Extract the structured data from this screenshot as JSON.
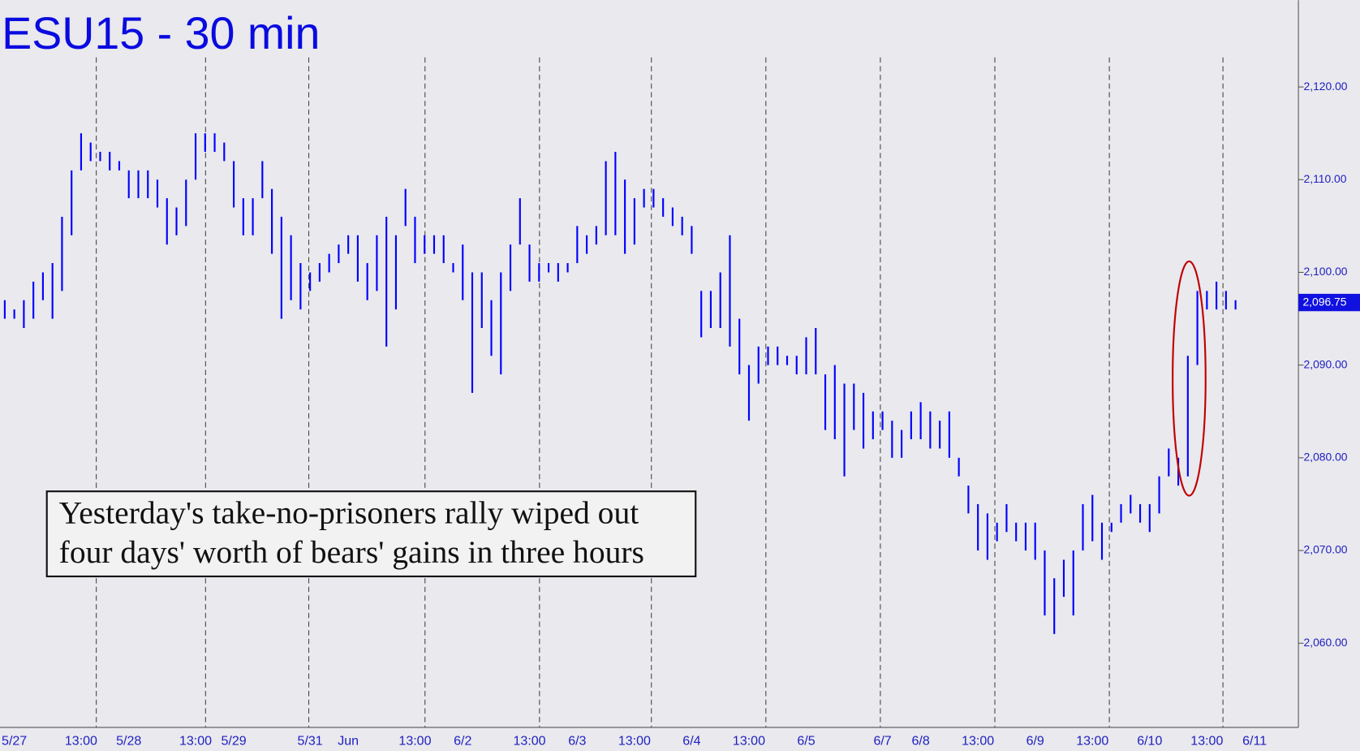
{
  "chart_data": {
    "type": "range-bar",
    "title": "ESU15 - 30 min",
    "annotation": [
      "Yesterday's take-no-prisoners rally wiped out",
      "four days' worth of bears' gains in three hours"
    ],
    "color": "#0000ff",
    "categories": [
      null,
      "5/27",
      null,
      null,
      null,
      null,
      null,
      null,
      "13:00",
      null,
      null,
      null,
      null,
      "5/28",
      null,
      null,
      null,
      null,
      null,
      null,
      "13:00",
      null,
      null,
      null,
      "5/29",
      null,
      null,
      null,
      null,
      null,
      null,
      null,
      "5/31",
      null,
      null,
      null,
      "Jun",
      null,
      null,
      null,
      null,
      null,
      null,
      "13:00",
      null,
      null,
      null,
      null,
      "6/2",
      null,
      null,
      null,
      null,
      null,
      null,
      "13:00",
      null,
      null,
      null,
      null,
      "6/3",
      null,
      null,
      null,
      null,
      null,
      "13:00",
      null,
      null,
      null,
      null,
      null,
      "6/4",
      null,
      null,
      null,
      null,
      null,
      "13:00",
      null,
      null,
      null,
      null,
      null,
      "6/5",
      null,
      null,
      null,
      null,
      null,
      null,
      null,
      "6/7",
      null,
      null,
      null,
      "6/8",
      null,
      null,
      null,
      null,
      null,
      "13:00",
      null,
      null,
      null,
      null,
      null,
      "6/9",
      null,
      null,
      null,
      null,
      null,
      "13:00",
      null,
      null,
      null,
      null,
      null,
      "6/10",
      null,
      null,
      null,
      null,
      null,
      "13:00",
      null,
      null,
      null,
      null,
      "6/11"
    ],
    "highs": [
      2097,
      2096,
      2097,
      2099,
      2100,
      2101,
      2106,
      2111,
      2115,
      2114,
      2113,
      2113,
      2112,
      2111,
      2111,
      2111,
      2110,
      2108,
      2107,
      2110,
      2115,
      2115,
      2115,
      2114,
      2112,
      2108,
      2108,
      2112,
      2109,
      2106,
      2104,
      2101,
      2100,
      2101,
      2102,
      2103,
      2104,
      2104,
      2101,
      2104,
      2106,
      2104,
      2109,
      2106,
      2104,
      2104,
      2104,
      2101,
      2103,
      2100,
      2100,
      2097,
      2100,
      2103,
      2108,
      2103,
      2101,
      2101,
      2101,
      2101,
      2105,
      2104,
      2105,
      2112,
      2113,
      2110,
      2108,
      2109,
      2109,
      2108,
      2107,
      2106,
      2105,
      2098,
      2098,
      2100,
      2104,
      2095,
      2090,
      2092,
      2092,
      2092,
      2091,
      2091,
      2093,
      2094,
      2089,
      2090,
      2088,
      2088,
      2087,
      2085,
      2085,
      2084,
      2083,
      2085,
      2086,
      2085,
      2084,
      2085,
      2080,
      2077,
      2075,
      2074,
      2073,
      2075,
      2073,
      2073,
      2073,
      2070,
      2067,
      2069,
      2070,
      2075,
      2076,
      2073,
      2073,
      2075,
      2076,
      2075,
      2075,
      2078,
      2081,
      2080,
      2091,
      2098,
      2098,
      2099,
      2098,
      2097,
      null,
      null
    ],
    "lows": [
      2095,
      2095,
      2094,
      2095,
      2097,
      2095,
      2098,
      2104,
      2111,
      2112,
      2112,
      2111,
      2111,
      2108,
      2108,
      2108,
      2107,
      2103,
      2104,
      2105,
      2110,
      2113,
      2113,
      2112,
      2107,
      2104,
      2104,
      2108,
      2102,
      2095,
      2097,
      2096,
      2098,
      2099,
      2100,
      2101,
      2102,
      2099,
      2097,
      2098,
      2092,
      2096,
      2105,
      2101,
      2102,
      2102,
      2101,
      2100,
      2097,
      2087,
      2094,
      2091,
      2089,
      2098,
      2103,
      2099,
      2099,
      2100,
      2099,
      2100,
      2101,
      2102,
      2103,
      2104,
      2104,
      2102,
      2103,
      2107,
      2107,
      2106,
      2105,
      2104,
      2102,
      2093,
      2094,
      2094,
      2092,
      2089,
      2084,
      2088,
      2090,
      2090,
      2090,
      2089,
      2089,
      2089,
      2083,
      2082,
      2078,
      2083,
      2081,
      2082,
      2083,
      2080,
      2080,
      2082,
      2082,
      2081,
      2081,
      2080,
      2078,
      2074,
      2070,
      2069,
      2071,
      2072,
      2071,
      2070,
      2069,
      2063,
      2061,
      2065,
      2063,
      2070,
      2071,
      2069,
      2072,
      2073,
      2074,
      2073,
      2072,
      2074,
      2078,
      2077,
      2078,
      2090,
      2096,
      2096,
      2096,
      2096,
      null,
      null
    ],
    "ylim": [
      2050.92,
      2129.36
    ],
    "yticks": [
      {
        "value": 2060,
        "label": "2,060.00"
      },
      {
        "value": 2070,
        "label": "2,070.00"
      },
      {
        "value": 2080,
        "label": "2,080.00"
      },
      {
        "value": 2090,
        "label": "2,090.00"
      },
      {
        "value": 2100,
        "label": "2,100.00"
      },
      {
        "value": 2110,
        "label": "2,110.00"
      },
      {
        "value": 2120,
        "label": "2,120.00"
      }
    ],
    "last_price": {
      "value": 2096.75,
      "label": "2,096.75"
    }
  }
}
